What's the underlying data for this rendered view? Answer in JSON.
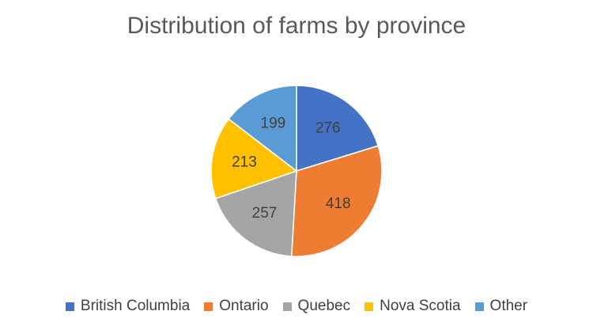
{
  "chart_data": {
    "type": "pie",
    "title": "Distribution of farms by province",
    "categories": [
      "British Columbia",
      "Ontario",
      "Quebec",
      "Nova Scotia",
      "Other"
    ],
    "values": [
      276,
      418,
      257,
      213,
      199
    ],
    "colors": [
      "#4472C4",
      "#ED7D31",
      "#A5A5A5",
      "#FFC000",
      "#5B9BD5"
    ],
    "legend_position": "bottom",
    "data_labels": true
  }
}
